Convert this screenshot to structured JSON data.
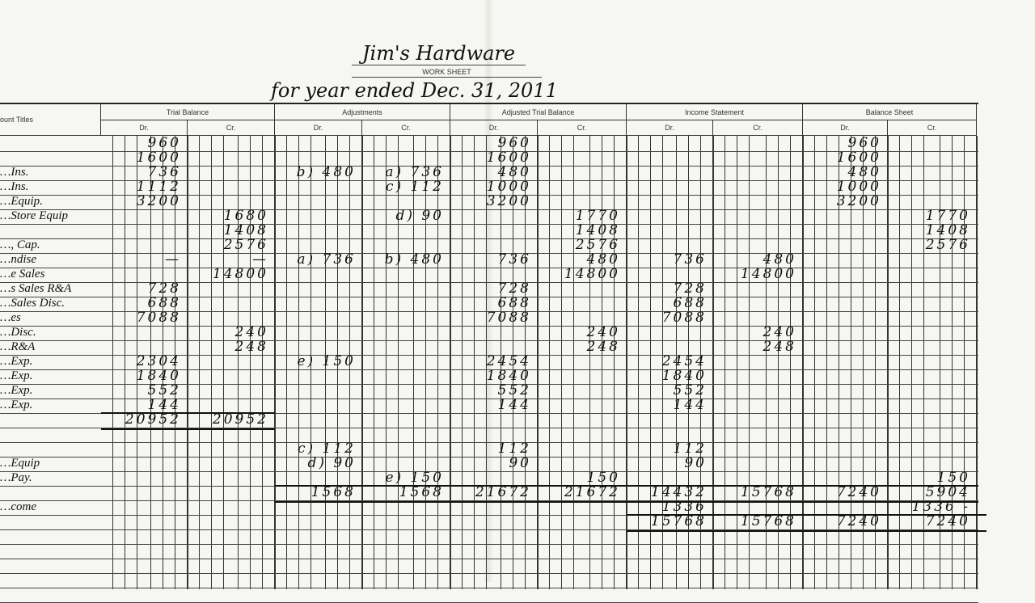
{
  "header": {
    "company": "Jim's Hardware",
    "form": "WORK SHEET",
    "period": "for year ended Dec. 31, 2011"
  },
  "columns": {
    "account_titles": "ount Titles",
    "groups": [
      "Trial Balance",
      "Adjustments",
      "Adjusted Trial Balance",
      "Income Statement",
      "Balance Sheet"
    ],
    "dr": "Dr.",
    "cr": "Cr."
  },
  "rows": [
    {
      "title": "",
      "cells": [
        "960",
        "",
        "",
        "",
        "960",
        "",
        "",
        "",
        "960",
        ""
      ]
    },
    {
      "title": "",
      "cells": [
        "1600",
        "",
        "",
        "",
        "1600",
        "",
        "",
        "",
        "1600",
        ""
      ]
    },
    {
      "title": "…Ins.",
      "cells": [
        "736",
        "",
        "b) 480",
        "a) 736",
        "480",
        "",
        "",
        "",
        "480",
        ""
      ]
    },
    {
      "title": "…Ins.",
      "cells": [
        "1112",
        "",
        "",
        "c) 112",
        "1000",
        "",
        "",
        "",
        "1000",
        ""
      ]
    },
    {
      "title": "…Equip.",
      "cells": [
        "3200",
        "",
        "",
        "",
        "3200",
        "",
        "",
        "",
        "3200",
        ""
      ]
    },
    {
      "title": "…Store Equip",
      "cells": [
        "",
        "1680",
        "",
        "d) 90",
        "",
        "1770",
        "",
        "",
        "",
        "1770"
      ]
    },
    {
      "title": "",
      "cells": [
        "",
        "1408",
        "",
        "",
        "",
        "1408",
        "",
        "",
        "",
        "1408"
      ]
    },
    {
      "title": "…, Cap.",
      "cells": [
        "",
        "2576",
        "",
        "",
        "",
        "2576",
        "",
        "",
        "",
        "2576"
      ]
    },
    {
      "title": "…ndise",
      "cells": [
        "—",
        "—",
        "a) 736",
        "b) 480",
        "736",
        "480",
        "736",
        "480",
        "",
        ""
      ]
    },
    {
      "title": "…e Sales",
      "cells": [
        "",
        "14800",
        "",
        "",
        "",
        "14800",
        "",
        "14800",
        "",
        ""
      ]
    },
    {
      "title": "…s Sales R&A",
      "cells": [
        "728",
        "",
        "",
        "",
        "728",
        "",
        "728",
        "",
        "",
        ""
      ]
    },
    {
      "title": "…Sales Disc.",
      "cells": [
        "688",
        "",
        "",
        "",
        "688",
        "",
        "688",
        "",
        "",
        ""
      ]
    },
    {
      "title": "…es",
      "cells": [
        "7088",
        "",
        "",
        "",
        "7088",
        "",
        "7088",
        "",
        "",
        ""
      ]
    },
    {
      "title": "…Disc.",
      "cells": [
        "",
        "240",
        "",
        "",
        "",
        "240",
        "",
        "240",
        "",
        ""
      ]
    },
    {
      "title": "…R&A",
      "cells": [
        "",
        "248",
        "",
        "",
        "",
        "248",
        "",
        "248",
        "",
        ""
      ]
    },
    {
      "title": "…Exp.",
      "cells": [
        "2304",
        "",
        "e) 150",
        "",
        "2454",
        "",
        "2454",
        "",
        "",
        ""
      ]
    },
    {
      "title": "…Exp.",
      "cells": [
        "1840",
        "",
        "",
        "",
        "1840",
        "",
        "1840",
        "",
        "",
        ""
      ]
    },
    {
      "title": "…Exp.",
      "cells": [
        "552",
        "",
        "",
        "",
        "552",
        "",
        "552",
        "",
        "",
        ""
      ]
    },
    {
      "title": "…Exp.",
      "cells": [
        "144",
        "",
        "",
        "",
        "144",
        "",
        "144",
        "",
        "",
        ""
      ]
    },
    {
      "title": "",
      "cells": [
        "20952",
        "20952",
        "",
        "",
        "",
        "",
        "",
        "",
        "",
        ""
      ]
    },
    {
      "title": "",
      "cells": [
        "",
        "",
        "",
        "",
        "",
        "",
        "",
        "",
        "",
        ""
      ]
    },
    {
      "title": "",
      "cells": [
        "",
        "",
        "c) 112",
        "",
        "112",
        "",
        "112",
        "",
        "",
        ""
      ]
    },
    {
      "title": "…Equip",
      "cells": [
        "",
        "",
        "d) 90",
        "",
        "90",
        "",
        "90",
        "",
        "",
        ""
      ]
    },
    {
      "title": "…Pay.",
      "cells": [
        "",
        "",
        "",
        "e) 150",
        "",
        "150",
        "",
        "",
        "",
        "150"
      ]
    },
    {
      "title": "",
      "cells": [
        "",
        "",
        "1568",
        "1568",
        "21672",
        "21672",
        "14432",
        "15768",
        "7240",
        "5904"
      ]
    },
    {
      "title": "…come",
      "cells": [
        "",
        "",
        "",
        "",
        "",
        "",
        "1336",
        "",
        "",
        "1336 -"
      ]
    },
    {
      "title": "",
      "cells": [
        "",
        "",
        "",
        "",
        "",
        "",
        "15768",
        "15768",
        "7240",
        "7240"
      ]
    }
  ]
}
